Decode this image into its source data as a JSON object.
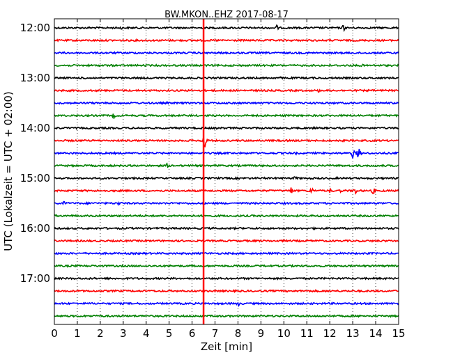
{
  "chart_data": {
    "type": "line",
    "title": "BW.MKON..EHZ 2017-08-17",
    "xlabel": "Zeit  [min]",
    "ylabel": "UTC (Lokalzeit = UTC + 02:00)",
    "xlim": [
      0,
      15
    ],
    "x_ticks": [
      "0",
      "1",
      "2",
      "3",
      "4",
      "5",
      "6",
      "7",
      "8",
      "9",
      "10",
      "11",
      "12",
      "13",
      "14",
      "15"
    ],
    "y_ticks": [
      "12:00",
      "13:00",
      "14:00",
      "15:00",
      "16:00",
      "17:00"
    ],
    "grid": "vertical dotted",
    "trace_interval_min": 15,
    "trace_colors": [
      "#000000",
      "#ff0000",
      "#0000ff",
      "#008000"
    ],
    "marker": {
      "x": 6.5,
      "color": "#ff0000"
    },
    "traces": [
      {
        "start": "12:00",
        "color": "#000000",
        "events": [
          {
            "t": 2.9,
            "amp": 3
          },
          {
            "t": 9.7,
            "amp": 5
          },
          {
            "t": 12.6,
            "amp": 6
          }
        ]
      },
      {
        "start": "12:15",
        "color": "#ff0000",
        "events": []
      },
      {
        "start": "12:30",
        "color": "#0000ff",
        "events": []
      },
      {
        "start": "12:45",
        "color": "#008000",
        "events": [
          {
            "t": 13.4,
            "amp": 3
          }
        ]
      },
      {
        "start": "13:00",
        "color": "#000000",
        "events": [
          {
            "t": 1.3,
            "amp": 3
          },
          {
            "t": 9.8,
            "amp": 3
          }
        ]
      },
      {
        "start": "13:15",
        "color": "#ff0000",
        "events": [
          {
            "t": 11.5,
            "amp": 3
          }
        ]
      },
      {
        "start": "13:30",
        "color": "#0000ff",
        "events": []
      },
      {
        "start": "13:45",
        "color": "#008000",
        "events": [
          {
            "t": 2.6,
            "amp": 5
          }
        ]
      },
      {
        "start": "14:00",
        "color": "#000000",
        "events": []
      },
      {
        "start": "14:15",
        "color": "#ff0000",
        "events": [
          {
            "t": 6.55,
            "amp": 16
          }
        ]
      },
      {
        "start": "14:30",
        "color": "#0000ff",
        "events": [
          {
            "t": 10.5,
            "amp": 3
          },
          {
            "t": 13.0,
            "amp": 8
          },
          {
            "t": 13.25,
            "amp": 10
          }
        ]
      },
      {
        "start": "14:45",
        "color": "#008000",
        "events": [
          {
            "t": 4.9,
            "amp": 4
          }
        ]
      },
      {
        "start": "15:00",
        "color": "#000000",
        "events": [
          {
            "t": 10.5,
            "amp": 4
          }
        ]
      },
      {
        "start": "15:15",
        "color": "#ff0000",
        "events": [
          {
            "t": 10.3,
            "amp": 7
          },
          {
            "t": 11.2,
            "amp": 7
          },
          {
            "t": 12.0,
            "amp": 4
          },
          {
            "t": 12.5,
            "amp": 4
          },
          {
            "t": 13.1,
            "amp": 7
          },
          {
            "t": 13.9,
            "amp": 6
          }
        ]
      },
      {
        "start": "15:30",
        "color": "#0000ff",
        "events": [
          {
            "t": 0.4,
            "amp": 4
          },
          {
            "t": 2.8,
            "amp": 4
          }
        ]
      },
      {
        "start": "15:45",
        "color": "#008000",
        "events": []
      },
      {
        "start": "16:00",
        "color": "#000000",
        "events": []
      },
      {
        "start": "16:15",
        "color": "#ff0000",
        "events": []
      },
      {
        "start": "16:30",
        "color": "#0000ff",
        "events": []
      },
      {
        "start": "16:45",
        "color": "#008000",
        "events": []
      },
      {
        "start": "17:00",
        "color": "#000000",
        "events": []
      },
      {
        "start": "17:15",
        "color": "#ff0000",
        "events": []
      },
      {
        "start": "17:30",
        "color": "#0000ff",
        "events": [
          {
            "t": 8.0,
            "amp": 5
          }
        ]
      },
      {
        "start": "17:45",
        "color": "#008000",
        "events": []
      }
    ]
  }
}
